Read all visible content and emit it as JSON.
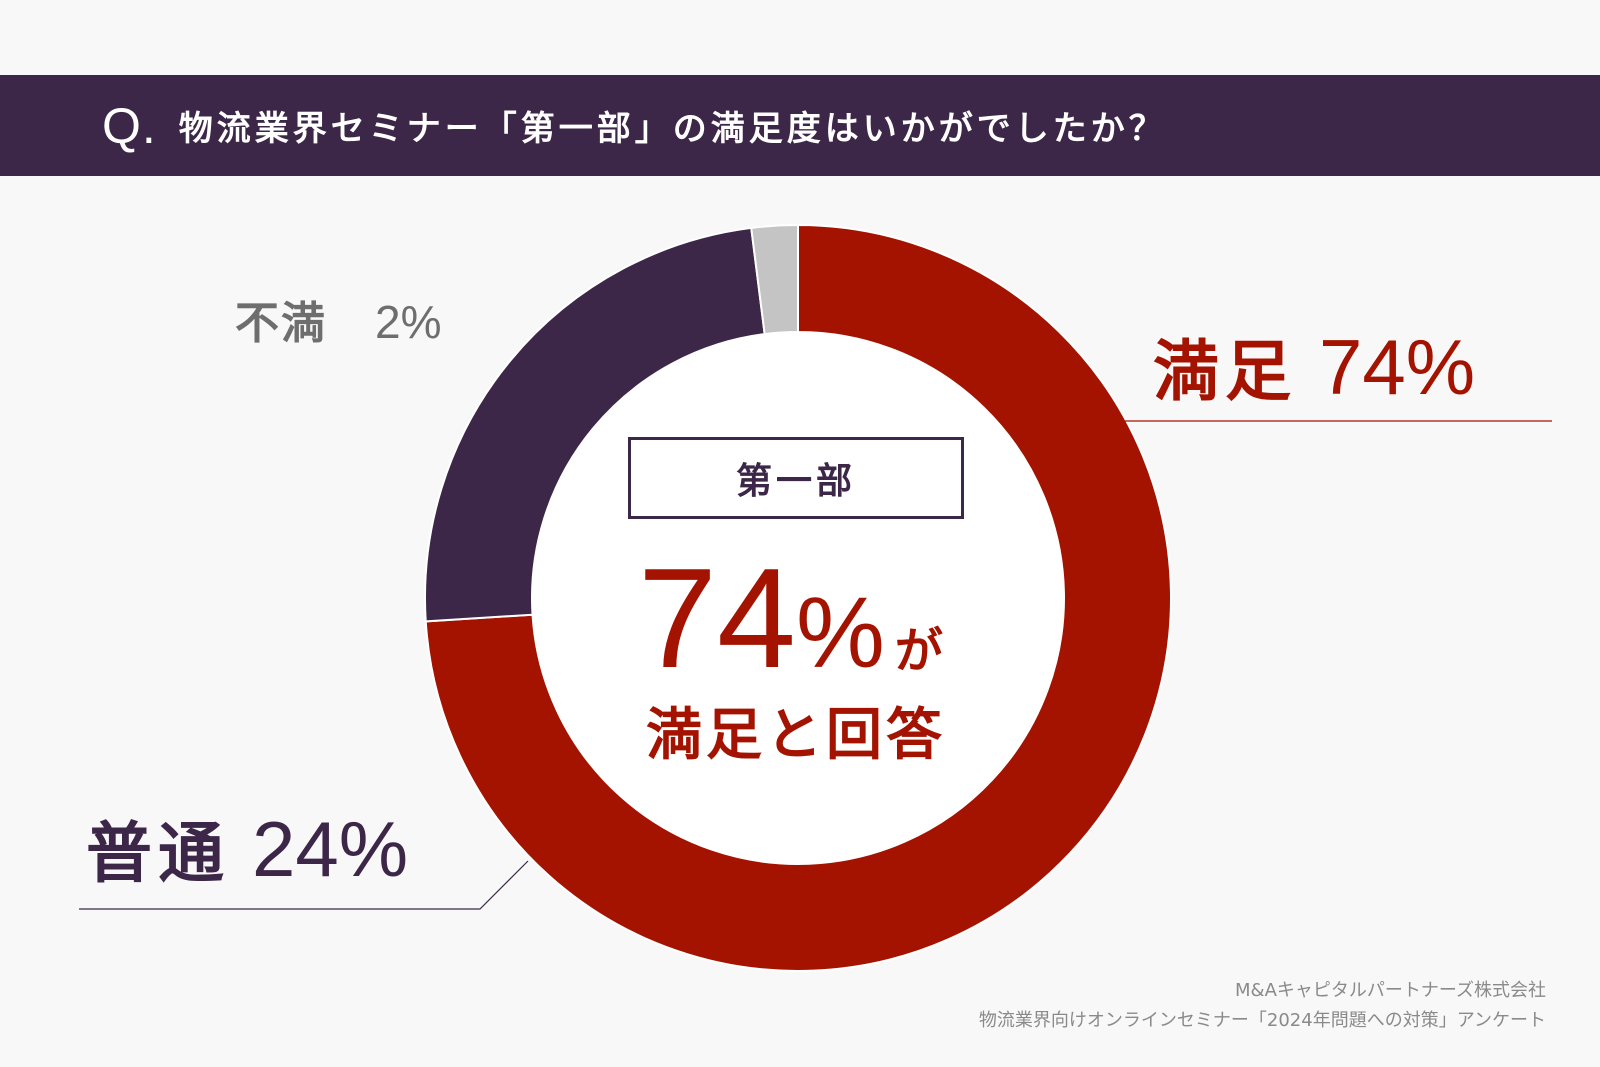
{
  "header": {
    "q_mark": "Q.",
    "question": "物流業界セミナー「第一部」の満足度はいかがでしたか？"
  },
  "center": {
    "part_label": "第一部",
    "big_number": "74",
    "percent_sign": "%",
    "ga": "が",
    "caption": "満足と回答"
  },
  "labels": {
    "satisfied": {
      "category": "満足",
      "value": "74%"
    },
    "neutral": {
      "category": "普通",
      "value": "24%"
    },
    "dissatisfied": {
      "category": "不満",
      "value": "2%"
    }
  },
  "source": {
    "line1": "M&Aキャピタルパートナーズ株式会社",
    "line2": "物流業界向けオンラインセミナー「2024年問題への対策」アンケート"
  },
  "chart_data": {
    "type": "pie",
    "donut": true,
    "categories": [
      "満足",
      "普通",
      "不満"
    ],
    "values": [
      74,
      24,
      2
    ],
    "unit": "%",
    "colors": [
      "#a31300",
      "#3d2748",
      "#c4c4c4"
    ],
    "center_label": "第一部"
  }
}
